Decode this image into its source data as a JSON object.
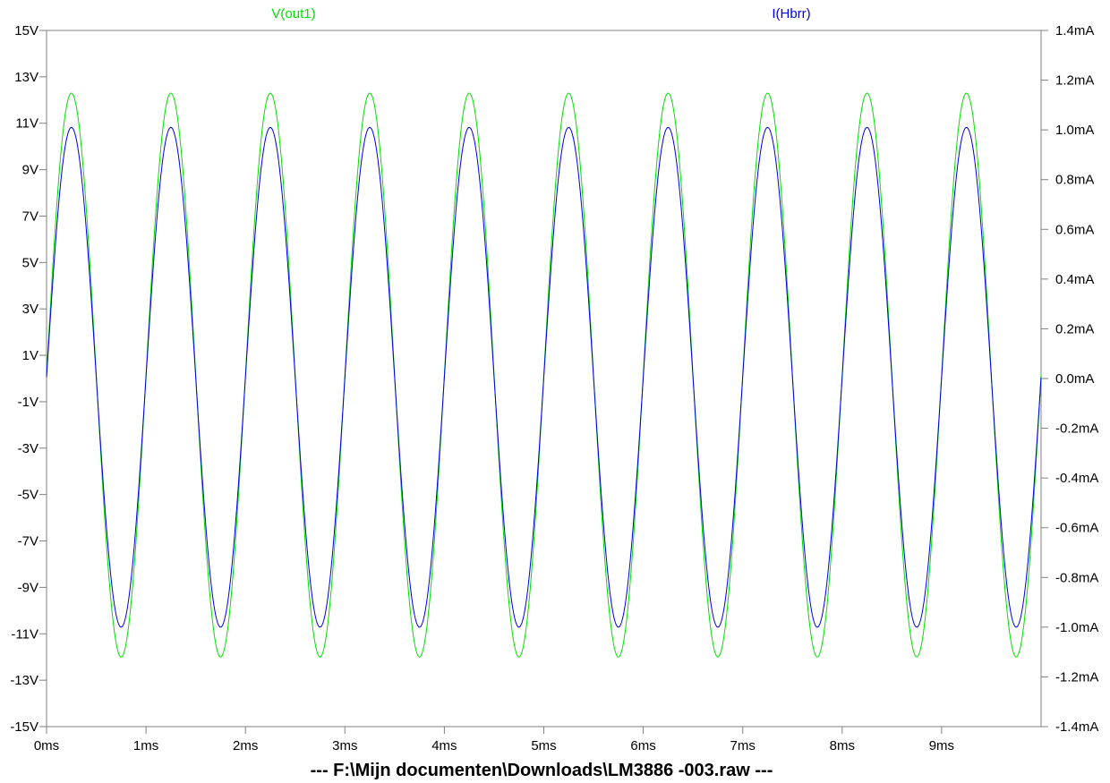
{
  "chart_data": {
    "type": "line",
    "title": "---  F:\\Mijn documenten\\Downloads\\LM3886 -003.raw  ---",
    "xlabel": "",
    "ylabel_left": "",
    "ylabel_right": "",
    "xlim": [
      0,
      10
    ],
    "ylim_left": [
      -15,
      15
    ],
    "ylim_right": [
      -1.4,
      1.4
    ],
    "x_ticks": [
      0,
      1,
      2,
      3,
      4,
      5,
      6,
      7,
      8,
      9
    ],
    "x_tick_labels": [
      "0ms",
      "1ms",
      "2ms",
      "3ms",
      "4ms",
      "5ms",
      "6ms",
      "7ms",
      "8ms",
      "9ms"
    ],
    "y_left_ticks": [
      15,
      13,
      11,
      9,
      7,
      5,
      3,
      1,
      -1,
      -3,
      -5,
      -7,
      -9,
      -11,
      -13,
      -15
    ],
    "y_left_tick_labels": [
      "15V",
      "13V",
      "11V",
      "9V",
      "7V",
      "5V",
      "3V",
      "1V",
      "-1V",
      "-3V",
      "-5V",
      "-7V",
      "-9V",
      "-11V",
      "-13V",
      "-15V"
    ],
    "y_right_ticks": [
      1.4,
      1.2,
      1.0,
      0.8,
      0.6,
      0.4,
      0.2,
      0.0,
      -0.2,
      -0.4,
      -0.6,
      -0.8,
      -1.0,
      -1.2,
      -1.4
    ],
    "y_right_tick_labels": [
      "1.4mA",
      "1.2mA",
      "1.0mA",
      "0.8mA",
      "0.6mA",
      "0.4mA",
      "0.2mA",
      "0.0mA",
      "-0.2mA",
      "-0.4mA",
      "-0.6mA",
      "-0.8mA",
      "-1.0mA",
      "-1.2mA",
      "-1.4mA"
    ],
    "grid": false,
    "series": [
      {
        "name": "V(out1)",
        "axis": "left",
        "color": "#00e000",
        "waveform": "sine",
        "frequency_khz": 1,
        "offset": 0.15,
        "amplitude": 12.15
      },
      {
        "name": "I(Hbrr)",
        "axis": "right",
        "color": "#0000e0",
        "waveform": "sine",
        "frequency_khz": 1,
        "offset": 0.005,
        "amplitude": 1.005
      }
    ]
  }
}
